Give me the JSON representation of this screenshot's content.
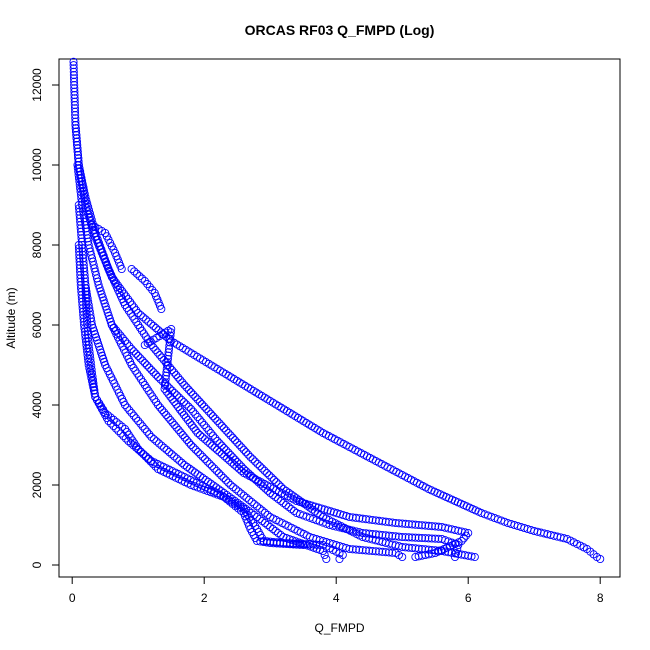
{
  "chart_data": {
    "type": "scatter",
    "title": "ORCAS RF03 Q_FMPD (Log)",
    "xlabel": "Q_FMPD",
    "ylabel": "Altitude (m)",
    "xlim": [
      -0.2,
      8.3
    ],
    "ylim": [
      -300,
      12650
    ],
    "x_ticks": [
      0,
      2,
      4,
      6,
      8
    ],
    "y_ticks": [
      0,
      2000,
      4000,
      6000,
      8000,
      10000,
      12000
    ],
    "grid": false,
    "legend": "none",
    "marker": "open-circle",
    "color": "#0000ff",
    "profiles": [
      {
        "points": [
          [
            0.02,
            12580
          ],
          [
            0.03,
            12000
          ],
          [
            0.05,
            11000
          ],
          [
            0.1,
            10000
          ],
          [
            0.2,
            9000
          ],
          [
            0.35,
            8200
          ],
          [
            0.6,
            7200
          ],
          [
            1.0,
            6300
          ],
          [
            1.5,
            5600
          ],
          [
            2.2,
            4900
          ],
          [
            3.0,
            4100
          ],
          [
            3.8,
            3300
          ],
          [
            4.6,
            2600
          ],
          [
            5.4,
            1900
          ],
          [
            6.2,
            1300
          ],
          [
            6.6,
            1050
          ],
          [
            7.0,
            850
          ],
          [
            7.5,
            650
          ],
          [
            7.8,
            400
          ],
          [
            7.95,
            200
          ],
          [
            8.0,
            150
          ]
        ]
      },
      {
        "points": [
          [
            0.05,
            11000
          ],
          [
            0.1,
            10000
          ],
          [
            0.2,
            9200
          ],
          [
            0.35,
            8300
          ],
          [
            0.55,
            7400
          ],
          [
            0.8,
            6500
          ],
          [
            1.2,
            5500
          ],
          [
            1.7,
            4500
          ],
          [
            2.2,
            3600
          ],
          [
            2.7,
            2700
          ],
          [
            3.2,
            1900
          ],
          [
            3.8,
            1200
          ],
          [
            4.4,
            700
          ],
          [
            5.0,
            450
          ],
          [
            5.6,
            350
          ],
          [
            6.1,
            200
          ]
        ]
      },
      {
        "points": [
          [
            0.08,
            10000
          ],
          [
            0.15,
            9000
          ],
          [
            0.25,
            8000
          ],
          [
            0.4,
            7000
          ],
          [
            0.6,
            6000
          ],
          [
            0.9,
            5000
          ],
          [
            1.3,
            4000
          ],
          [
            1.8,
            3000
          ],
          [
            2.4,
            2000
          ],
          [
            3.0,
            1200
          ],
          [
            3.6,
            700
          ],
          [
            4.2,
            400
          ],
          [
            4.9,
            300
          ],
          [
            5.0,
            200
          ]
        ]
      },
      {
        "points": [
          [
            0.1,
            9000
          ],
          [
            0.15,
            8000
          ],
          [
            0.2,
            7000
          ],
          [
            0.3,
            6000
          ],
          [
            0.5,
            5000
          ],
          [
            0.8,
            4000
          ],
          [
            1.2,
            3200
          ],
          [
            1.7,
            2500
          ],
          [
            2.3,
            1800
          ],
          [
            2.8,
            1200
          ],
          [
            3.2,
            700
          ],
          [
            3.8,
            350
          ],
          [
            3.85,
            150
          ]
        ]
      },
      {
        "points": [
          [
            0.1,
            8000
          ],
          [
            0.13,
            7000
          ],
          [
            0.18,
            6000
          ],
          [
            0.25,
            5000
          ],
          [
            0.35,
            4200
          ],
          [
            0.55,
            3600
          ],
          [
            0.85,
            3100
          ],
          [
            1.2,
            2600
          ],
          [
            1.7,
            2200
          ],
          [
            2.2,
            1800
          ],
          [
            2.6,
            1400
          ],
          [
            2.8,
            900
          ],
          [
            2.9,
            600
          ],
          [
            3.2,
            550
          ],
          [
            3.8,
            500
          ],
          [
            4.1,
            250
          ],
          [
            4.05,
            150
          ]
        ]
      },
      {
        "points": [
          [
            0.2,
            7000
          ],
          [
            0.22,
            6200
          ],
          [
            0.25,
            5500
          ],
          [
            0.3,
            4800
          ],
          [
            0.35,
            4200
          ],
          [
            0.5,
            3800
          ],
          [
            0.8,
            3400
          ],
          [
            1.0,
            2900
          ],
          [
            1.3,
            2400
          ],
          [
            1.8,
            2000
          ],
          [
            2.3,
            1700
          ],
          [
            2.6,
            1300
          ],
          [
            2.7,
            900
          ],
          [
            2.8,
            600
          ],
          [
            3.0,
            550
          ],
          [
            3.5,
            500
          ]
        ]
      },
      {
        "points": [
          [
            0.3,
            8500
          ],
          [
            0.5,
            8300
          ],
          [
            0.65,
            7800
          ],
          [
            0.75,
            7400
          ]
        ]
      },
      {
        "points": [
          [
            0.9,
            7400
          ],
          [
            1.1,
            7100
          ],
          [
            1.25,
            6800
          ],
          [
            1.35,
            6400
          ]
        ]
      },
      {
        "points": [
          [
            0.6,
            6000
          ],
          [
            0.9,
            5400
          ],
          [
            1.3,
            4700
          ],
          [
            1.8,
            3900
          ],
          [
            2.2,
            3100
          ],
          [
            2.6,
            2400
          ],
          [
            3.0,
            1800
          ],
          [
            3.4,
            1300
          ],
          [
            3.9,
            1000
          ],
          [
            4.4,
            800
          ],
          [
            5.0,
            700
          ],
          [
            5.6,
            650
          ],
          [
            5.85,
            500
          ],
          [
            5.8,
            200
          ]
        ]
      },
      {
        "points": [
          [
            1.1,
            5500
          ],
          [
            1.5,
            5900
          ],
          [
            1.4,
            4400
          ],
          [
            1.9,
            3300
          ],
          [
            2.6,
            2300
          ],
          [
            3.4,
            1600
          ],
          [
            4.2,
            1200
          ],
          [
            4.9,
            1050
          ],
          [
            5.6,
            950
          ],
          [
            6.0,
            800
          ],
          [
            5.9,
            600
          ],
          [
            5.5,
            300
          ],
          [
            5.2,
            200
          ]
        ]
      }
    ]
  }
}
